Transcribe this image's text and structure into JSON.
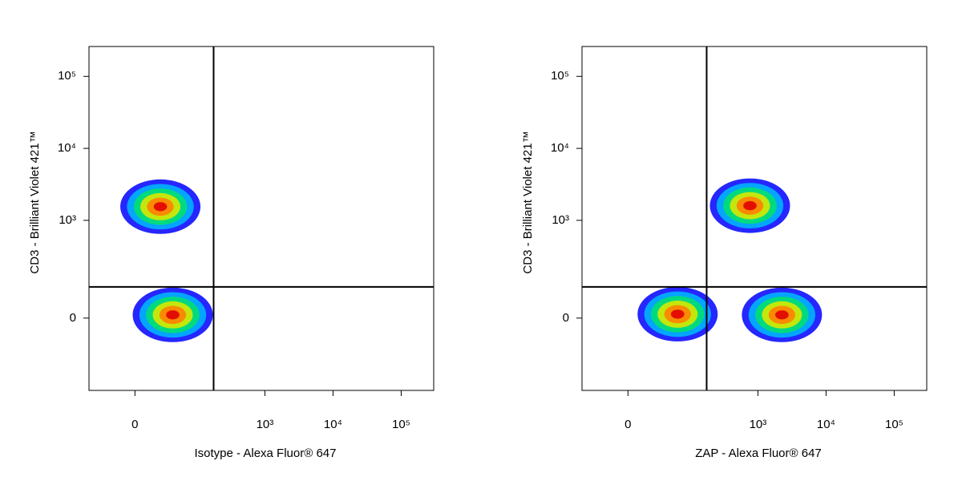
{
  "chart_data": [
    {
      "type": "density",
      "x_label": "Isotype - Alexa Fluor® 647",
      "y_label": "CD3 - Brilliant Violet 421™",
      "xscale": "arcsinh",
      "yscale": "arcsinh",
      "xlim": [
        -56,
        300000
      ],
      "ylim": [
        -440,
        260000
      ],
      "xticks": [
        0,
        {
          "value": 1000,
          "label": "10³"
        },
        {
          "value": 10000,
          "label": "10⁴"
        },
        {
          "value": 100000,
          "label": "10⁵"
        }
      ],
      "yticks": [
        0,
        {
          "value": 1000,
          "label": "10³"
        },
        {
          "value": 10000,
          "label": "10⁴"
        },
        {
          "value": 100000,
          "label": "10⁵"
        }
      ],
      "gate": {
        "x": 176,
        "y": 103
      },
      "populations": [
        {
          "x": 24,
          "y": 1550
        },
        {
          "x": 41,
          "y": 9
        }
      ]
    },
    {
      "type": "density",
      "x_label": "ZAP - Alexa Fluor® 647",
      "y_label": "CD3 - Brilliant Violet 421™",
      "xscale": "arcsinh",
      "yscale": "arcsinh",
      "xlim": [
        -56,
        300000
      ],
      "ylim": [
        -440,
        260000
      ],
      "xticks": [
        0,
        {
          "value": 1000,
          "label": "10³"
        },
        {
          "value": 10000,
          "label": "10⁴"
        },
        {
          "value": 100000,
          "label": "10⁵"
        }
      ],
      "yticks": [
        0,
        {
          "value": 1000,
          "label": "10³"
        },
        {
          "value": 10000,
          "label": "10⁴"
        },
        {
          "value": 100000,
          "label": "10⁵"
        }
      ],
      "gate": {
        "x": 176,
        "y": 103
      },
      "populations": [
        {
          "x": 764,
          "y": 1600
        },
        {
          "x": 64,
          "y": 11
        },
        {
          "x": 2250,
          "y": 9
        }
      ]
    }
  ]
}
